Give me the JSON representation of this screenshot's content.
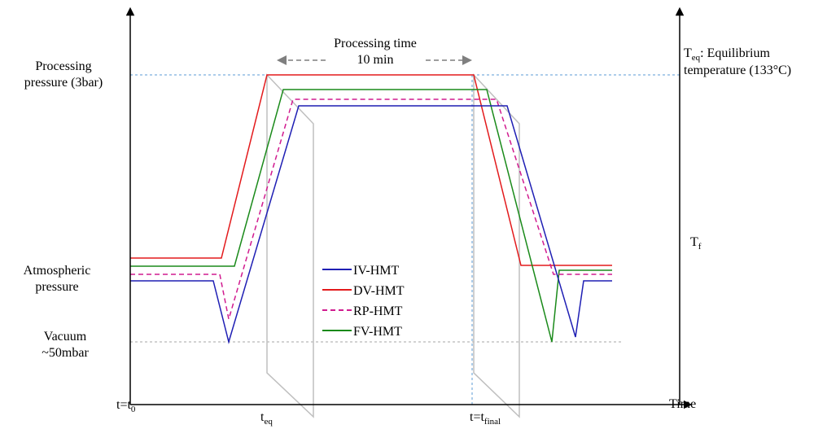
{
  "labels": {
    "left_axis": {
      "processing_pressure": [
        "Processing",
        "pressure (3bar)"
      ],
      "atmospheric_pressure": [
        "Atmospheric",
        "pressure"
      ],
      "vacuum": [
        "Vacuum",
        "~50mbar"
      ]
    },
    "right_axis": {
      "equilibrium_symbol": "T",
      "equilibrium_subscript": "eq",
      "equilibrium_text": ": Equilibrium",
      "equilibrium_line2": "temperature (133°C)",
      "final_symbol": "T",
      "final_subscript": "f"
    },
    "processing_time": {
      "line1": "Processing time",
      "line2": "10 min"
    },
    "x_axis": {
      "start_prefix": "t=t",
      "start_subscript": "0",
      "teq_symbol": "t",
      "teq_subscript": "eq",
      "final_prefix": "t=t",
      "final_subscript": "final",
      "time_label": "Time"
    }
  },
  "legend": [
    {
      "name": "IV-HMT",
      "color": "#1f1fb4",
      "dash": "solid"
    },
    {
      "name": "DV-HMT",
      "color": "#e31a1c",
      "dash": "solid"
    },
    {
      "name": "RP-HMT",
      "color": "#d11b8f",
      "dash": "dashed"
    },
    {
      "name": "FV-HMT",
      "color": "#1a8a1a",
      "dash": "solid"
    }
  ],
  "colors": {
    "reference_line": "#5b9bd5",
    "vacuum_line": "#a6a6a6",
    "plane": "#bfbfbf",
    "arrow": "#7f7f7f"
  }
}
